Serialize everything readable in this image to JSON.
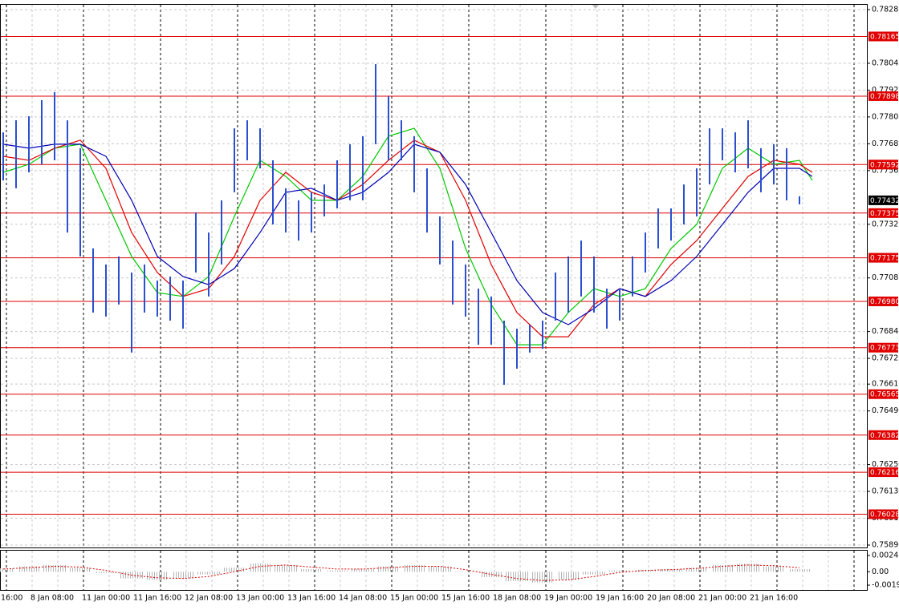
{
  "chart_data": [
    {
      "type": "ohlc",
      "highs": [
        0.77736,
        0.7779,
        0.77808,
        0.7788,
        0.77916,
        0.7779,
        0.77665,
        0.77217,
        0.77145,
        0.77181,
        0.77109,
        0.77145,
        0.77073,
        0.77091,
        0.77073,
        0.77378,
        0.77288,
        0.77432,
        0.77754,
        0.7779,
        0.77754,
        0.77611,
        0.77486,
        0.77432,
        0.77468,
        0.77503,
        0.77611,
        0.77683,
        0.77719,
        0.78041,
        0.77898,
        0.7779,
        0.77719,
        0.77575,
        0.7736,
        0.77252,
        0.77145,
        0.77037,
        0.77002,
        0.76894,
        0.76858,
        0.76876,
        0.76894,
        0.77109,
        0.77181,
        0.77252,
        0.77181,
        0.77037,
        0.77037,
        0.77181,
        0.77288,
        0.77396,
        0.77396,
        0.77503,
        0.77575,
        0.77754,
        0.77754,
        0.77736,
        0.7779,
        0.77665,
        0.77683,
        0.77665,
        0.7745
      ],
      "lows": [
        0.77521,
        0.77486,
        0.77557,
        0.77593,
        0.77611,
        0.77288,
        0.77181,
        0.7693,
        0.76912,
        0.76966,
        0.76751,
        0.7693,
        0.76912,
        0.76894,
        0.76858,
        0.77109,
        0.77002,
        0.77145,
        0.77468,
        0.77611,
        0.77575,
        0.77324,
        0.77288,
        0.77252,
        0.77288,
        0.7736,
        0.77396,
        0.77432,
        0.77432,
        0.77683,
        0.77611,
        0.77611,
        0.77468,
        0.77288,
        0.77145,
        0.76966,
        0.76912,
        0.76786,
        0.76786,
        0.76607,
        0.76679,
        0.76751,
        0.76768,
        0.76894,
        0.7693,
        0.77002,
        0.7693,
        0.76858,
        0.76894,
        0.77002,
        0.77109,
        0.77217,
        0.77252,
        0.77324,
        0.7736,
        0.77503,
        0.77611,
        0.77557,
        0.77575,
        0.77468,
        0.77503,
        0.77432,
        0.77414
      ],
      "color": "#2b4fd0",
      "series": [
        {
          "color": "#00c800",
          "x": [
            0,
            2,
            4,
            6,
            8,
            10,
            12,
            14,
            16,
            18,
            20,
            22,
            24,
            26,
            28,
            30,
            32,
            34,
            36,
            38,
            40,
            42,
            44,
            46,
            48,
            50,
            52,
            54,
            56,
            58,
            60,
            62,
            63
          ],
          "values": [
            0.77557,
            0.77593,
            0.77665,
            0.77683,
            0.77432,
            0.77181,
            0.77019,
            0.77002,
            0.77091,
            0.7736,
            0.77611,
            0.77539,
            0.77432,
            0.77432,
            0.77539,
            0.77719,
            0.77754,
            0.77575,
            0.77217,
            0.76966,
            0.76786,
            0.76786,
            0.7693,
            0.77037,
            0.77002,
            0.77037,
            0.77217,
            0.77324,
            0.77575,
            0.77665,
            0.77593,
            0.77611,
            0.77521
          ]
        },
        {
          "color": "#e00000",
          "x": [
            0,
            2,
            4,
            6,
            8,
            10,
            12,
            14,
            16,
            18,
            20,
            22,
            24,
            26,
            28,
            30,
            32,
            34,
            36,
            38,
            40,
            42,
            44,
            46,
            48,
            50,
            52,
            54,
            56,
            58,
            60,
            62,
            63
          ],
          "values": [
            0.77629,
            0.77611,
            0.77665,
            0.77701,
            0.77575,
            0.77288,
            0.77109,
            0.77002,
            0.77037,
            0.77181,
            0.77432,
            0.77557,
            0.77468,
            0.77432,
            0.77503,
            0.77611,
            0.77701,
            0.77647,
            0.77432,
            0.77145,
            0.7693,
            0.76822,
            0.76822,
            0.76966,
            0.77037,
            0.77002,
            0.77145,
            0.77252,
            0.77396,
            0.77539,
            0.77611,
            0.77593,
            0.77557
          ]
        },
        {
          "color": "#0000b4",
          "x": [
            0,
            2,
            4,
            6,
            8,
            10,
            12,
            14,
            16,
            18,
            20,
            22,
            24,
            26,
            28,
            30,
            32,
            34,
            36,
            38,
            40,
            42,
            44,
            46,
            48,
            50,
            52,
            54,
            56,
            58,
            60,
            62,
            63
          ],
          "values": [
            0.77683,
            0.77665,
            0.77683,
            0.77683,
            0.77629,
            0.77432,
            0.77181,
            0.77091,
            0.77055,
            0.77127,
            0.77288,
            0.77468,
            0.77486,
            0.77432,
            0.77468,
            0.77557,
            0.77683,
            0.77647,
            0.77503,
            0.77288,
            0.77073,
            0.7693,
            0.76876,
            0.76948,
            0.77037,
            0.77002,
            0.77073,
            0.77181,
            0.77324,
            0.77468,
            0.77575,
            0.77575,
            0.77539
          ]
        }
      ],
      "xlim": [
        -0.25,
        67.25
      ],
      "ylim": [
        0.7589,
        0.78285
      ],
      "yticks": [
        0.78285,
        0.78045,
        0.77925,
        0.77805,
        0.77685,
        0.77565,
        0.77325,
        0.77085,
        0.76845,
        0.76725,
        {
          "value": 0.7661,
          "label": "0.76610"
        },
        {
          "value": 0.7649,
          "label": "0.76490"
        },
        {
          "value": 0.7625,
          "label": "0.76250"
        },
        {
          "value": 0.7613,
          "label": "0.76130"
        },
        {
          "value": 0.7601,
          "label": "0.76010"
        },
        {
          "value": 0.7589,
          "label": "0.75890"
        }
      ],
      "levels": [
        0.78165,
        {
          "value": 0.77898,
          "label": "0.77898"
        },
        0.77592,
        0.77375,
        0.77175,
        {
          "value": 0.7698,
          "label": "0.76980"
        },
        0.76773,
        0.76565,
        0.76382,
        0.76216,
        0.76028
      ],
      "level_color": "#e00000",
      "last_price": 0.77432,
      "time_labels": [
        "16:00",
        "8 Jan 08:00",
        "11 Jan 00:00",
        "11 Jan 16:00",
        "12 Jan 08:00",
        "13 Jan 00:00",
        "13 Jan 16:00",
        "14 Jan 08:00",
        "15 Jan 00:00",
        "15 Jan 16:00",
        "18 Jan 08:00",
        "19 Jan 00:00",
        "19 Jan 16:00",
        "20 Jan 08:00",
        "21 Jan 00:00",
        "21 Jan 16:00"
      ],
      "grid": true
    },
    {
      "type": "oscillator",
      "x": [
        0,
        2,
        4,
        6,
        8,
        10,
        12,
        14,
        16,
        18,
        20,
        22,
        24,
        26,
        28,
        30,
        32,
        34,
        36,
        38,
        40,
        42,
        44,
        46,
        48,
        50,
        52,
        54,
        56,
        58,
        60,
        62
      ],
      "values": [
        0.0005,
        0.0008,
        0.001,
        0.0006,
        -0.0002,
        -0.001,
        -0.0012,
        -0.001,
        -0.0004,
        0.0006,
        0.0012,
        0.001,
        0.0004,
        0.0002,
        0.0004,
        0.0008,
        0.001,
        0.0008,
        0,
        -0.0008,
        -0.0014,
        -0.0016,
        -0.0012,
        -0.0004,
        0.0002,
        0.0003,
        0.0004,
        0.0006,
        0.001,
        0.0012,
        0.0008,
        0.0004
      ],
      "signal": [
        0.0004,
        0.0006,
        0.0008,
        0.0007,
        0.0002,
        -0.0005,
        -0.0009,
        -0.001,
        -0.0007,
        0,
        0.0008,
        0.001,
        0.0007,
        0.0004,
        0.0004,
        0.0006,
        0.0008,
        0.0008,
        0.0003,
        -0.0004,
        -0.001,
        -0.0013,
        -0.0012,
        -0.0007,
        -0.0001,
        0.0002,
        0.0003,
        0.0005,
        0.0008,
        0.001,
        0.0009,
        0.0006
      ],
      "color": "#b4b4b4",
      "signal_color": "#e00000",
      "xlim": [
        -0.25,
        67.25
      ],
      "ylim": [
        -0.00199,
        0.00241
      ],
      "yticks": [
        0.00241,
        {
          "value": 0,
          "label": "0.00"
        },
        -0.00199
      ]
    }
  ]
}
